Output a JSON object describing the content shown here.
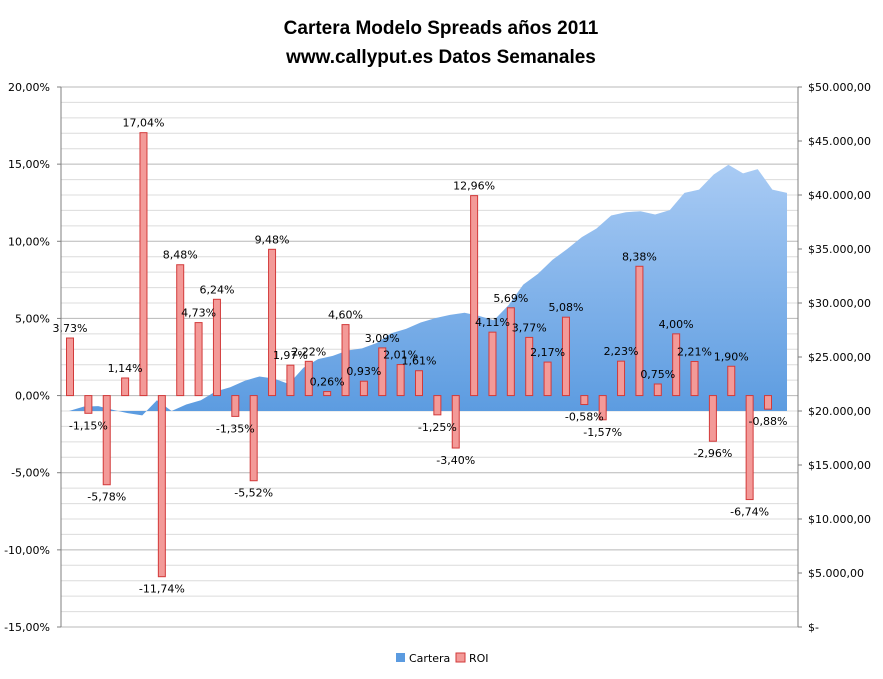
{
  "chart_data": {
    "type": "bar",
    "title": "Cartera Modelo Spreads años 2011",
    "subtitle": "www.callyput.es Datos Semanales",
    "y_left": {
      "min": -15,
      "max": 20,
      "step": 5,
      "tick_labels": [
        "-15,00%",
        "-10,00%",
        "-5,00%",
        "0,00%",
        "5,00%",
        "10,00%",
        "15,00%",
        "20,00%"
      ]
    },
    "y_right": {
      "min": 0,
      "max": 50000,
      "step": 5000,
      "tick_labels": [
        "$-",
        "$5.000,00",
        "$10.000,00",
        "$15.000,00",
        "$20.000,00",
        "$25.000,00",
        "$30.000,00",
        "$35.000,00",
        "$40.000,00",
        "$45.000,00",
        "$50.000,00"
      ]
    },
    "grid": true,
    "legend_position": "bottom",
    "series": [
      {
        "name": "Cartera",
        "kind": "area",
        "axis": "right",
        "color": "#5b9be0",
        "values": [
          20000,
          20400,
          20450,
          20100,
          19800,
          19600,
          21000,
          20000,
          20600,
          21000,
          21800,
          22200,
          22800,
          23200,
          23000,
          22500,
          24000,
          24800,
          25100,
          25600,
          25800,
          26300,
          27200,
          27600,
          28200,
          28600,
          28900,
          29100,
          28800,
          28400,
          29800,
          31700,
          32700,
          34000,
          35000,
          36100,
          36900,
          38100,
          38400,
          38500,
          38200,
          38600,
          40200,
          40500,
          41900,
          42800,
          42000,
          42400,
          40500,
          40200
        ],
        "value_labels": []
      },
      {
        "name": "ROI",
        "kind": "bar",
        "axis": "left",
        "color": "#e86a6a",
        "values": [
          3.73,
          -1.15,
          -5.78,
          1.14,
          17.04,
          -11.74,
          8.48,
          4.73,
          6.24,
          -1.35,
          -5.52,
          9.48,
          1.97,
          2.22,
          0.26,
          4.6,
          0.93,
          3.09,
          2.01,
          1.61,
          -1.25,
          -3.4,
          12.96,
          4.11,
          5.69,
          3.77,
          2.17,
          5.08,
          -0.58,
          -1.57,
          2.23,
          8.38,
          0.75,
          4.0,
          2.21,
          -2.96,
          1.9,
          -6.74,
          -0.88
        ],
        "value_labels": [
          "3,73%",
          "-1,15%",
          "-5,78%",
          "1,14%",
          "17,04%",
          "-11,74%",
          "8,48%",
          "4,73%",
          "6,24%",
          "-1,35%",
          "-5,52%",
          "9,48%",
          "1,97%",
          "2,22%",
          "0,26%",
          "4,60%",
          "0,93%",
          "3,09%",
          "2,01%",
          "1,61%",
          "-1,25%",
          "-3,40%",
          "12,96%",
          "4,11%",
          "5,69%",
          "3,77%",
          "2,17%",
          "5,08%",
          "-0,58%",
          "-1,57%",
          "2,23%",
          "8,38%",
          "0,75%",
          "4,00%",
          "2,21%",
          "-2,96%",
          "1,90%",
          "-6,74%",
          "-0,88%"
        ]
      }
    ]
  }
}
